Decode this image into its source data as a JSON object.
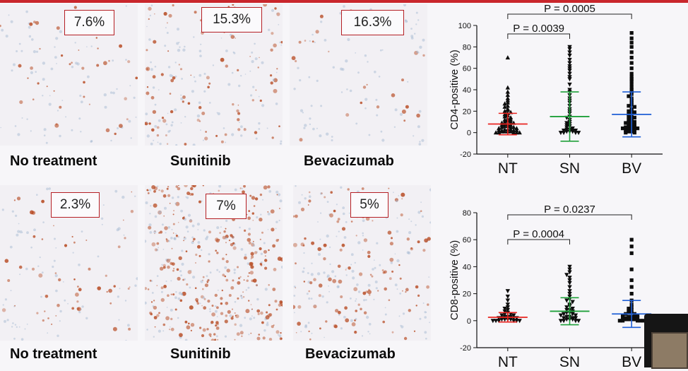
{
  "panels": {
    "row1": [
      {
        "label": "No treatment",
        "percent": "7.6%",
        "stain": "light"
      },
      {
        "label": "Sunitinib",
        "percent": "15.3%",
        "stain": "medium"
      },
      {
        "label": "Bevacizumab",
        "percent": "16.3%",
        "stain": "light-blue"
      }
    ],
    "row2": [
      {
        "label": "No treatment",
        "percent": "2.3%",
        "stain": "sparse"
      },
      {
        "label": "Sunitinib",
        "percent": "7%",
        "stain": "dense"
      },
      {
        "label": "Bevacizumab",
        "percent": "5%",
        "stain": "medium-blue"
      }
    ]
  },
  "colors": {
    "frame": "#c9262c",
    "nt": "#e8231f",
    "sn": "#1fa03a",
    "bv": "#1f5fd6",
    "box_border": "#b51f24",
    "stain": "#b5451b"
  },
  "chart_data": [
    {
      "type": "scatter",
      "title": "",
      "xlabel": "",
      "ylabel": "CD4-positive (%)",
      "categories": [
        "NT",
        "SN",
        "BV"
      ],
      "ylim": [
        -20,
        100
      ],
      "yticks": [
        -20,
        0,
        20,
        40,
        60,
        80,
        100
      ],
      "markers": [
        "triangle-up",
        "triangle-down",
        "square"
      ],
      "group_stats": [
        {
          "name": "NT",
          "mean": 8,
          "sd": 10
        },
        {
          "name": "SN",
          "mean": 15,
          "sd": 23
        },
        {
          "name": "BV",
          "mean": 17,
          "sd": 21
        }
      ],
      "series": [
        {
          "name": "NT",
          "values": [
            70,
            42,
            38,
            35,
            32,
            30,
            28,
            27,
            25,
            24,
            22,
            21,
            20,
            19,
            18,
            17,
            16,
            15,
            14,
            13,
            12,
            12,
            11,
            10,
            10,
            9,
            9,
            8,
            8,
            7,
            7,
            6,
            6,
            5,
            5,
            5,
            4,
            4,
            3,
            3,
            3,
            2,
            2,
            2,
            2,
            1,
            1,
            1,
            1,
            0,
            0,
            0,
            0,
            0
          ]
        },
        {
          "name": "SN",
          "values": [
            80,
            78,
            75,
            72,
            68,
            65,
            62,
            60,
            58,
            55,
            52,
            50,
            45,
            40,
            38,
            35,
            32,
            30,
            28,
            25,
            22,
            20,
            18,
            15,
            14,
            12,
            10,
            9,
            8,
            7,
            6,
            5,
            4,
            3,
            3,
            2,
            2,
            2,
            1,
            1,
            1,
            0,
            0,
            0,
            0
          ]
        },
        {
          "name": "BV",
          "values": [
            93,
            88,
            84,
            80,
            75,
            70,
            65,
            60,
            55,
            52,
            50,
            48,
            45,
            42,
            40,
            38,
            36,
            34,
            32,
            30,
            28,
            26,
            25,
            24,
            22,
            21,
            20,
            19,
            18,
            17,
            16,
            15,
            14,
            13,
            12,
            11,
            10,
            10,
            9,
            8,
            8,
            7,
            6,
            6,
            5,
            5,
            4,
            4,
            3,
            3,
            2,
            2,
            1,
            1,
            0,
            0
          ]
        }
      ],
      "comparisons": [
        {
          "from": "NT",
          "to": "SN",
          "label": "P = 0.0039"
        },
        {
          "from": "NT",
          "to": "BV",
          "label": "P = 0.0005"
        }
      ]
    },
    {
      "type": "scatter",
      "title": "",
      "xlabel": "",
      "ylabel": "CD8-positive (%)",
      "categories": [
        "NT",
        "SN",
        "BV"
      ],
      "ylim": [
        -20,
        80
      ],
      "yticks": [
        -20,
        0,
        20,
        40,
        60,
        80
      ],
      "markers": [
        "triangle-down",
        "triangle-down",
        "square"
      ],
      "group_stats": [
        {
          "name": "NT",
          "mean": 2.5,
          "sd": 3.5
        },
        {
          "name": "SN",
          "mean": 7,
          "sd": 10
        },
        {
          "name": "BV",
          "mean": 5,
          "sd": 10
        }
      ],
      "series": [
        {
          "name": "NT",
          "values": [
            22,
            18,
            15,
            12,
            10,
            9,
            8,
            7,
            6,
            5,
            5,
            4,
            4,
            3,
            3,
            3,
            2,
            2,
            2,
            2,
            1,
            1,
            1,
            1,
            0,
            0,
            0,
            0,
            0,
            0
          ]
        },
        {
          "name": "SN",
          "values": [
            40,
            38,
            36,
            34,
            32,
            30,
            28,
            25,
            22,
            20,
            18,
            16,
            15,
            14,
            12,
            11,
            10,
            9,
            8,
            8,
            7,
            6,
            6,
            5,
            5,
            4,
            4,
            3,
            3,
            2,
            2,
            2,
            1,
            1,
            1,
            0,
            0,
            0,
            0
          ]
        },
        {
          "name": "BV",
          "values": [
            60,
            55,
            50,
            38,
            30,
            25,
            20,
            15,
            12,
            10,
            9,
            8,
            7,
            6,
            6,
            5,
            5,
            4,
            4,
            3,
            3,
            3,
            2,
            2,
            2,
            1,
            1,
            1,
            1,
            0,
            0,
            0,
            0,
            0
          ]
        }
      ],
      "comparisons": [
        {
          "from": "NT",
          "to": "SN",
          "label": "P = 0.0004"
        },
        {
          "from": "NT",
          "to": "BV",
          "label": "P = 0.0237"
        }
      ]
    }
  ]
}
